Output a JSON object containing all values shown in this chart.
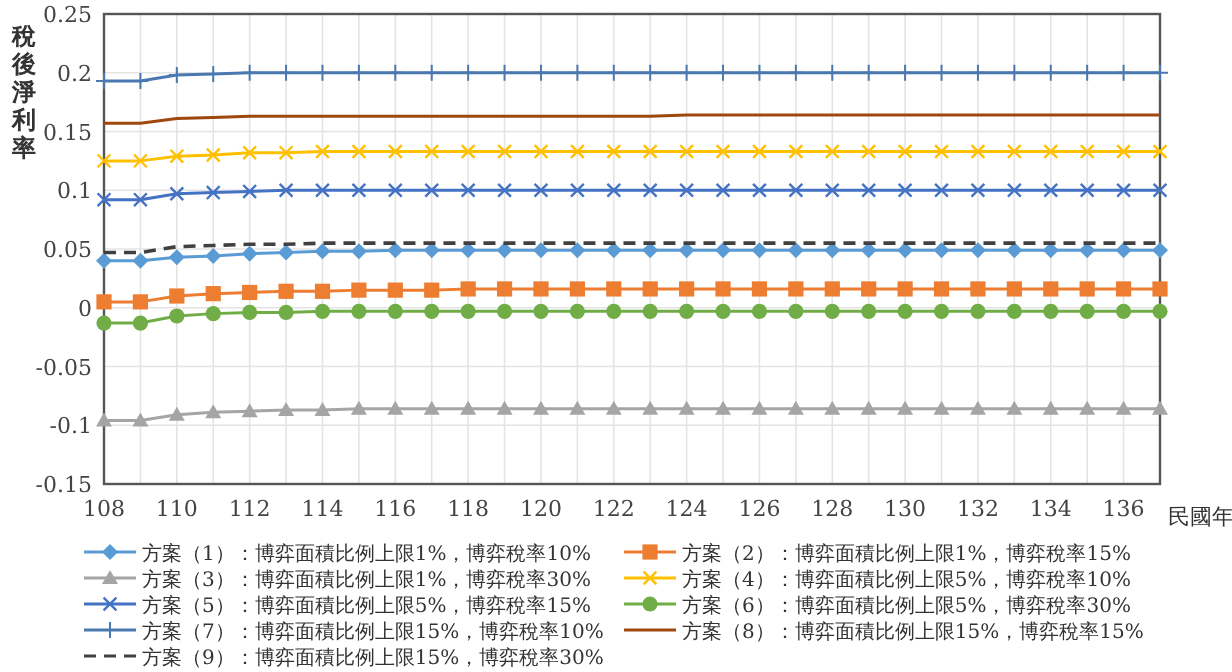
{
  "chart_data": {
    "type": "line",
    "ylabel": "稅後淨利率",
    "xlabel": "民國年",
    "xlim": [
      108,
      137
    ],
    "ylim": [
      -0.15,
      0.25
    ],
    "xticks": [
      108,
      110,
      112,
      114,
      116,
      118,
      120,
      122,
      124,
      126,
      128,
      130,
      132,
      134,
      136
    ],
    "yticks": [
      -0.15,
      -0.1,
      -0.05,
      0,
      0.05,
      0.1,
      0.15,
      0.2,
      0.25
    ],
    "grid": true,
    "legend": "bottom",
    "x": [
      108,
      109,
      110,
      111,
      112,
      113,
      114,
      115,
      116,
      117,
      118,
      119,
      120,
      121,
      122,
      123,
      124,
      125,
      126,
      127,
      128,
      129,
      130,
      131,
      132,
      133,
      134,
      135,
      136,
      137
    ],
    "series": [
      {
        "name": "方案（1）：博弈面積比例上限1%，博弈稅率10%",
        "color": "#5b9bd5",
        "marker": "diamond",
        "values": [
          0.04,
          0.04,
          0.043,
          0.044,
          0.046,
          0.047,
          0.048,
          0.048,
          0.049,
          0.049,
          0.049,
          0.049,
          0.049,
          0.049,
          0.049,
          0.049,
          0.049,
          0.049,
          0.049,
          0.049,
          0.049,
          0.049,
          0.049,
          0.049,
          0.049,
          0.049,
          0.049,
          0.049,
          0.049,
          0.049
        ]
      },
      {
        "name": "方案（2）：博弈面積比例上限1%，博弈稅率15%",
        "color": "#ed7d31",
        "marker": "square",
        "values": [
          0.005,
          0.005,
          0.01,
          0.012,
          0.013,
          0.014,
          0.014,
          0.015,
          0.015,
          0.015,
          0.016,
          0.016,
          0.016,
          0.016,
          0.016,
          0.016,
          0.016,
          0.016,
          0.016,
          0.016,
          0.016,
          0.016,
          0.016,
          0.016,
          0.016,
          0.016,
          0.016,
          0.016,
          0.016,
          0.016
        ]
      },
      {
        "name": "方案（3）：博弈面積比例上限1%，博弈稅率30%",
        "color": "#a5a5a5",
        "marker": "triangle",
        "values": [
          -0.096,
          -0.096,
          -0.091,
          -0.089,
          -0.088,
          -0.087,
          -0.087,
          -0.086,
          -0.086,
          -0.086,
          -0.086,
          -0.086,
          -0.086,
          -0.086,
          -0.086,
          -0.086,
          -0.086,
          -0.086,
          -0.086,
          -0.086,
          -0.086,
          -0.086,
          -0.086,
          -0.086,
          -0.086,
          -0.086,
          -0.086,
          -0.086,
          -0.086,
          -0.086
        ]
      },
      {
        "name": "方案（4）：博弈面積比例上限5%，博弈稅率10%",
        "color": "#ffc000",
        "marker": "cross",
        "values": [
          0.125,
          0.125,
          0.129,
          0.13,
          0.132,
          0.132,
          0.133,
          0.133,
          0.133,
          0.133,
          0.133,
          0.133,
          0.133,
          0.133,
          0.133,
          0.133,
          0.133,
          0.133,
          0.133,
          0.133,
          0.133,
          0.133,
          0.133,
          0.133,
          0.133,
          0.133,
          0.133,
          0.133,
          0.133,
          0.133
        ]
      },
      {
        "name": "方案（5）：博弈面積比例上限5%，博弈稅率15%",
        "color": "#4472c4",
        "marker": "cross",
        "values": [
          0.092,
          0.092,
          0.097,
          0.098,
          0.099,
          0.1,
          0.1,
          0.1,
          0.1,
          0.1,
          0.1,
          0.1,
          0.1,
          0.1,
          0.1,
          0.1,
          0.1,
          0.1,
          0.1,
          0.1,
          0.1,
          0.1,
          0.1,
          0.1,
          0.1,
          0.1,
          0.1,
          0.1,
          0.1,
          0.1
        ]
      },
      {
        "name": "方案（6）：博弈面積比例上限5%，博弈稅率30%",
        "color": "#70ad47",
        "marker": "circle",
        "values": [
          -0.013,
          -0.013,
          -0.007,
          -0.005,
          -0.004,
          -0.004,
          -0.003,
          -0.003,
          -0.003,
          -0.003,
          -0.003,
          -0.003,
          -0.003,
          -0.003,
          -0.003,
          -0.003,
          -0.003,
          -0.003,
          -0.003,
          -0.003,
          -0.003,
          -0.003,
          -0.003,
          -0.003,
          -0.003,
          -0.003,
          -0.003,
          -0.003,
          -0.003,
          -0.003
        ]
      },
      {
        "name": "方案（7）：博弈面積比例上限15%，博弈稅率10%",
        "color": "#4a78b0",
        "marker": "plus",
        "values": [
          0.193,
          0.193,
          0.198,
          0.199,
          0.2,
          0.2,
          0.2,
          0.2,
          0.2,
          0.2,
          0.2,
          0.2,
          0.2,
          0.2,
          0.2,
          0.2,
          0.2,
          0.2,
          0.2,
          0.2,
          0.2,
          0.2,
          0.2,
          0.2,
          0.2,
          0.2,
          0.2,
          0.2,
          0.2,
          0.2
        ]
      },
      {
        "name": "方案（8）：博弈面積比例上限15%，博弈稅率15%",
        "color": "#9e480e",
        "marker": "none",
        "values": [
          0.157,
          0.157,
          0.161,
          0.162,
          0.163,
          0.163,
          0.163,
          0.163,
          0.163,
          0.163,
          0.163,
          0.163,
          0.163,
          0.163,
          0.163,
          0.163,
          0.164,
          0.164,
          0.164,
          0.164,
          0.164,
          0.164,
          0.164,
          0.164,
          0.164,
          0.164,
          0.164,
          0.164,
          0.164,
          0.164
        ]
      },
      {
        "name": "方案（9）：博弈面積比例上限15%，博弈稅率30%",
        "color": "#404040",
        "marker": "none",
        "line_style": "dashed",
        "values": [
          0.047,
          0.047,
          0.052,
          0.053,
          0.054,
          0.054,
          0.055,
          0.055,
          0.055,
          0.055,
          0.055,
          0.055,
          0.055,
          0.055,
          0.055,
          0.055,
          0.055,
          0.055,
          0.055,
          0.055,
          0.055,
          0.055,
          0.055,
          0.055,
          0.055,
          0.055,
          0.055,
          0.055,
          0.055,
          0.055
        ]
      }
    ]
  }
}
